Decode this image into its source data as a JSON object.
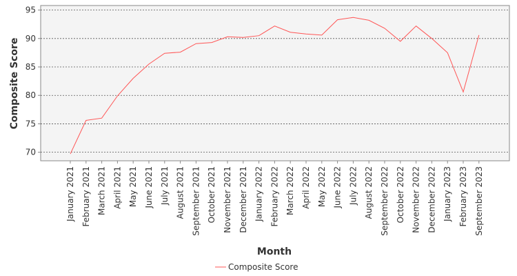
{
  "chart_data": {
    "type": "line",
    "xlabel": "Month",
    "ylabel": "Composite Score",
    "categories": [
      "January 2021",
      "February 2021",
      "March 2021",
      "April 2021",
      "May 2021",
      "June 2021",
      "July 2021",
      "August 2021",
      "September 2021",
      "October 2021",
      "November 2021",
      "December 2021",
      "January 2022",
      "February 2022",
      "March 2022",
      "April 2022",
      "May 2022",
      "June 2022",
      "July 2022",
      "August 2022",
      "September 2022",
      "October 2022",
      "November 2022",
      "December 2022",
      "January 2023",
      "February 2023",
      "September 2023"
    ],
    "series": [
      {
        "name": "Composite Score",
        "values": [
          69.7,
          75.6,
          76.0,
          79.9,
          83.0,
          85.5,
          87.4,
          87.6,
          89.1,
          89.3,
          90.3,
          90.2,
          90.5,
          92.2,
          91.1,
          90.8,
          90.6,
          93.3,
          93.7,
          93.2,
          91.8,
          89.5,
          92.2,
          90.0,
          87.5,
          80.6,
          90.6
        ]
      }
    ],
    "ylim": [
      68.5,
      95.8
    ],
    "yticks": [
      70,
      75,
      80,
      85,
      90,
      95
    ],
    "grid": true,
    "legend_position": "bottom-center",
    "colors": {
      "series": "#ff5555",
      "plot_background": "#f4f4f4",
      "grid": "#555555",
      "frame": "#888888"
    }
  }
}
